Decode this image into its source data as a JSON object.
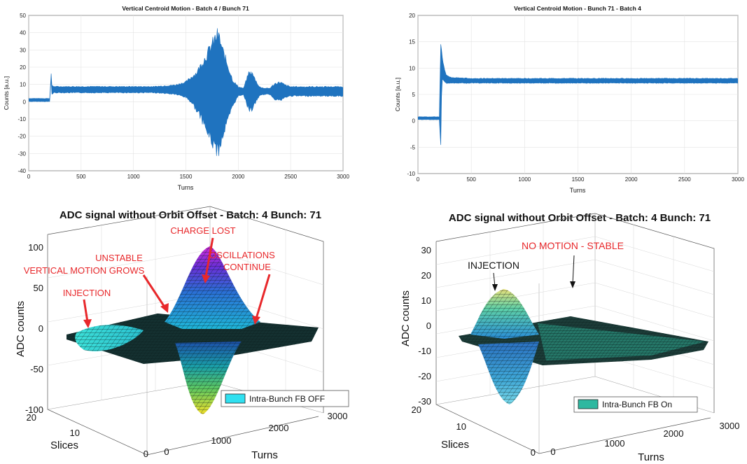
{
  "chart_data": [
    {
      "type": "line",
      "title": "Vertical Centroid Motion - Batch 4 / Bunch 71",
      "xlabel": "Turns",
      "ylabel": "Counts [a.u.]",
      "xlim": [
        0,
        3000
      ],
      "ylim": [
        -40,
        50
      ],
      "xticks": [
        0,
        500,
        1000,
        1500,
        2000,
        2500,
        3000
      ],
      "yticks": [
        -40,
        -30,
        -20,
        -10,
        0,
        10,
        20,
        30,
        40,
        50
      ],
      "grid": true,
      "color": "#1f73bf",
      "series": [
        {
          "x": [
            0,
            200,
            215,
            220,
            240,
            300,
            500,
            800,
            1000,
            1200,
            1400,
            1500,
            1550,
            1600,
            1650,
            1700,
            1750,
            1800,
            1820,
            1850,
            1900,
            1950,
            2000,
            2050,
            2070,
            2100,
            2130,
            2160,
            2200,
            2250,
            2300,
            2350,
            2400,
            2450,
            2500,
            2700,
            2900,
            3000
          ],
          "center": [
            1,
            1,
            15,
            7,
            7,
            7,
            7,
            7,
            7,
            7,
            7,
            7,
            7,
            6,
            6,
            5,
            5,
            5,
            5,
            5,
            5,
            5,
            6,
            6,
            6,
            6,
            6,
            6,
            6,
            6,
            6,
            6,
            6,
            6,
            6,
            6,
            6,
            6
          ],
          "half_amplitude": [
            1,
            1,
            2,
            3,
            2,
            2,
            2,
            2,
            2,
            2,
            3,
            5,
            8,
            12,
            18,
            25,
            32,
            38,
            36,
            28,
            18,
            8,
            3,
            2,
            6,
            12,
            12,
            8,
            3,
            2,
            2,
            5,
            6,
            4,
            3,
            3,
            3,
            3
          ]
        }
      ]
    },
    {
      "type": "line",
      "title": "Vertical Centroid Motion - Bunch 71 - Batch 4",
      "xlabel": "Turns",
      "ylabel": "Counts [a.u.]",
      "xlim": [
        0,
        3000
      ],
      "ylim": [
        -10,
        20
      ],
      "xticks": [
        0,
        500,
        1000,
        1500,
        2000,
        2500,
        3000
      ],
      "yticks": [
        -10,
        -5,
        0,
        5,
        10,
        15,
        20
      ],
      "grid": true,
      "color": "#1f73bf",
      "series": [
        {
          "x": [
            0,
            200,
            215,
            220,
            230,
            260,
            300,
            500,
            1000,
            1500,
            2000,
            2500,
            3000
          ],
          "center": [
            0.5,
            0.5,
            6,
            9,
            10,
            8,
            7.7,
            7.6,
            7.6,
            7.6,
            7.6,
            7.6,
            7.6
          ],
          "half_amplitude": [
            0.3,
            0.3,
            12,
            5,
            2,
            1,
            0.6,
            0.5,
            0.5,
            0.5,
            0.5,
            0.5,
            0.5
          ]
        }
      ]
    },
    {
      "type": "surface",
      "title": "ADC signal without Orbit Offset - Batch: 4 Bunch: 71",
      "xlabel": "Turns",
      "ylabel": "Slices",
      "zlabel": "ADC counts",
      "xticks": [
        0,
        1000,
        2000,
        3000
      ],
      "yticks": [
        0,
        10,
        20
      ],
      "zticks": [
        -100,
        -50,
        0,
        50,
        100
      ],
      "zlim": [
        -100,
        100
      ],
      "legend": "Intra-Bunch FB OFF",
      "legend_color": "#2fe0f0",
      "annotations": [
        "CHARGE LOST",
        "UNSTABLE",
        "VERTICAL MOTION GROWS",
        "OSCILLATIONS",
        "CONTINUE",
        "INJECTION"
      ],
      "annotation_color": "#e8282b"
    },
    {
      "type": "surface",
      "title": "ADC signal without Orbit Offset - Batch: 4 Bunch: 71",
      "xlabel": "Turns",
      "ylabel": "Slices",
      "zlabel": "ADC counts",
      "xticks": [
        0,
        1000,
        2000,
        3000
      ],
      "yticks": [
        0,
        10,
        20
      ],
      "zticks": [
        -30,
        -20,
        -10,
        0,
        10,
        20,
        30
      ],
      "zlim": [
        -30,
        30
      ],
      "legend": "Intra-Bunch FB On",
      "legend_color": "#2eb8a0",
      "annotations": [
        "NO MOTION - STABLE",
        "INJECTION"
      ],
      "annotation_colors": [
        "#e8282b",
        "#111111"
      ]
    }
  ]
}
